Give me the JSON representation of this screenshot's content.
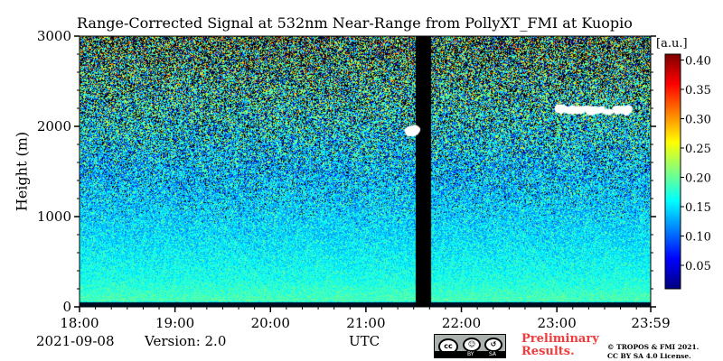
{
  "chart_data": {
    "type": "heatmap",
    "title": "Range-Corrected Signal at 532nm Near-Range from PollyXT_FMI at Kuopio",
    "ylabel": "Height (m)",
    "xlabel": "UTC",
    "x_ticks": [
      "18:00",
      "19:00",
      "20:00",
      "21:00",
      "22:00",
      "23:00",
      "23:59"
    ],
    "x_range_hours": [
      18.0,
      23.983
    ],
    "y_ticks": [
      0,
      1000,
      2000,
      3000
    ],
    "ylim": [
      0,
      3000
    ],
    "colorbar": {
      "label": "[a.u.]",
      "ticks": [
        "0.05",
        "0.10",
        "0.15",
        "0.20",
        "0.25",
        "0.30",
        "0.35",
        "0.40"
      ],
      "range": [
        0.01,
        0.41
      ],
      "colormap": "jet"
    },
    "data_gap_utc": [
      21.52,
      21.68
    ],
    "cloud_patches": [
      {
        "start_utc": 23.0,
        "end_utc": 23.75,
        "height_m": 2180
      },
      {
        "start_utc": 21.45,
        "end_utc": 21.52,
        "height_m": 1950
      }
    ],
    "signal_profile": [
      {
        "height_m": 0,
        "value": 0.0
      },
      {
        "height_m": 60,
        "value": 0.19
      },
      {
        "height_m": 300,
        "value": 0.17
      },
      {
        "height_m": 800,
        "value": 0.15
      },
      {
        "height_m": 1500,
        "value": 0.14
      },
      {
        "height_m": 2000,
        "value": 0.16
      },
      {
        "height_m": 2500,
        "value": 0.18
      },
      {
        "height_m": 3000,
        "value": 0.2
      }
    ]
  },
  "footer": {
    "date": "2021-09-08",
    "version": "Version: 2.0",
    "timezone": "UTC",
    "license_badge": {
      "by": "BY",
      "sa": "SA"
    },
    "preliminary": [
      "Preliminary",
      "Results."
    ],
    "copyright": [
      "© TROPOS & FMI 2021.",
      "CC BY SA 4.0 License."
    ]
  }
}
